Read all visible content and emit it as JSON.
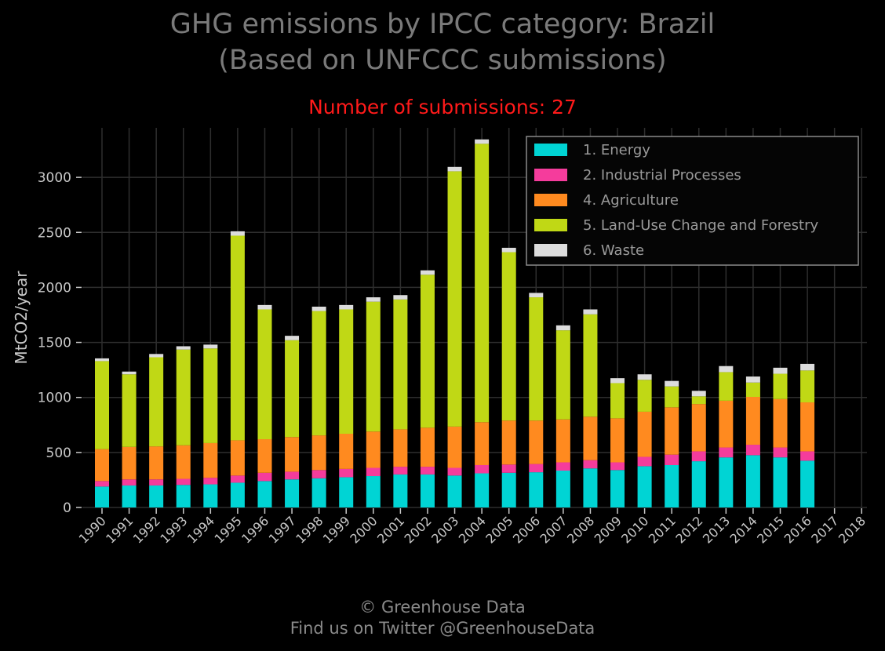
{
  "header": {
    "title_line1": "GHG emissions by IPCC category: Brazil",
    "title_line2": "(Based on UNFCCC submissions)",
    "subtitle": "Number of submissions: 27"
  },
  "footer": {
    "line1": "© Greenhouse Data",
    "line2": "Find us on Twitter @GreenhouseData"
  },
  "colors": {
    "background": "#000000",
    "grid": "#2e2e2e",
    "axis_text": "#c8c8c8",
    "subtitle": "#ff1a1a"
  },
  "chart_data": {
    "type": "bar",
    "stacked": true,
    "ylabel": "MtCO2/year",
    "ylim": [
      0,
      3450
    ],
    "yticks": [
      0,
      500,
      1000,
      1500,
      2000,
      2500,
      3000
    ],
    "grid": true,
    "legend_position": "top-right",
    "categories": [
      "1990",
      "1991",
      "1992",
      "1993",
      "1994",
      "1995",
      "1996",
      "1997",
      "1998",
      "1999",
      "2000",
      "2001",
      "2002",
      "2003",
      "2004",
      "2005",
      "2006",
      "2007",
      "2008",
      "2009",
      "2010",
      "2011",
      "2012",
      "2013",
      "2014",
      "2015",
      "2016",
      "2017",
      "2018"
    ],
    "series": [
      {
        "name": "1. Energy",
        "color": "#00d4d4",
        "values": [
          190,
          200,
          200,
          205,
          210,
          225,
          240,
          255,
          265,
          275,
          285,
          300,
          300,
          290,
          310,
          315,
          320,
          335,
          355,
          340,
          375,
          385,
          420,
          455,
          475,
          455,
          425,
          null,
          null
        ]
      },
      {
        "name": "2. Industrial Processes",
        "color": "#f53c9c",
        "values": [
          50,
          55,
          55,
          55,
          60,
          65,
          75,
          70,
          75,
          75,
          75,
          70,
          70,
          70,
          75,
          75,
          75,
          75,
          75,
          70,
          85,
          95,
          90,
          90,
          95,
          90,
          85,
          null,
          null
        ]
      },
      {
        "name": "4. Agriculture",
        "color": "#ff8a1f",
        "values": [
          290,
          295,
          300,
          305,
          315,
          320,
          305,
          315,
          315,
          320,
          330,
          340,
          355,
          375,
          390,
          400,
          395,
          390,
          395,
          400,
          410,
          430,
          430,
          425,
          435,
          440,
          445,
          null,
          null
        ]
      },
      {
        "name": "5. Land-Use Change and Forestry",
        "color": "#c0d815",
        "values": [
          800,
          660,
          810,
          870,
          860,
          1860,
          1180,
          880,
          1130,
          1130,
          1180,
          1180,
          1390,
          2320,
          2530,
          1530,
          1120,
          810,
          930,
          320,
          290,
          190,
          70,
          260,
          130,
          230,
          290,
          null,
          null
        ]
      },
      {
        "name": "6. Waste",
        "color": "#dcdcdc",
        "values": [
          25,
          25,
          30,
          30,
          35,
          40,
          40,
          40,
          40,
          40,
          40,
          40,
          40,
          40,
          40,
          40,
          40,
          45,
          45,
          45,
          50,
          50,
          50,
          55,
          55,
          55,
          60,
          null,
          null
        ]
      }
    ]
  }
}
